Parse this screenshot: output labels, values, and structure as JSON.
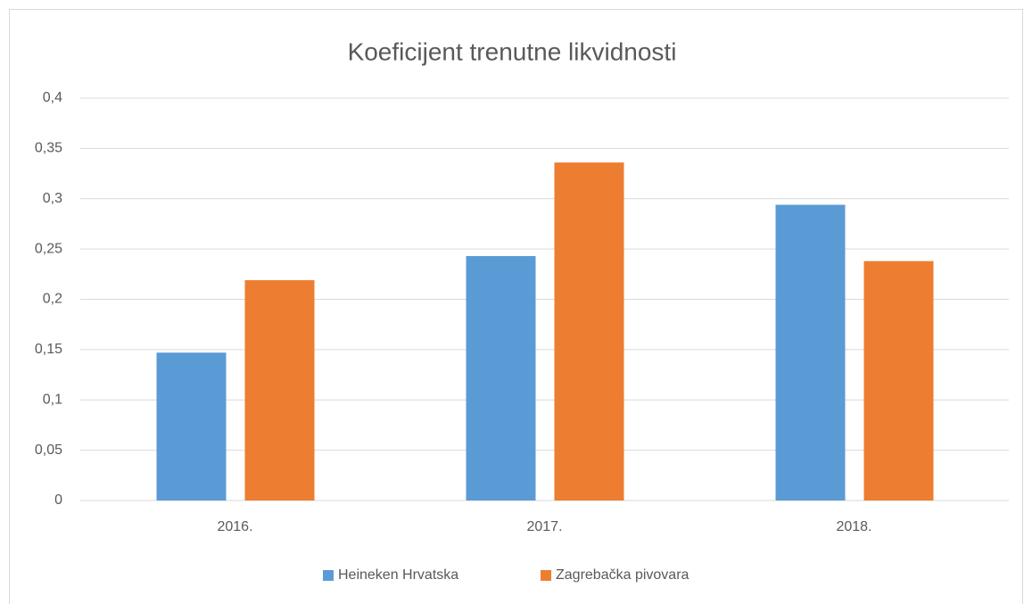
{
  "chart_data": {
    "type": "bar",
    "title": "Koeficijent trenutne likvidnosti",
    "categories": [
      "2016.",
      "2017.",
      "2018."
    ],
    "series": [
      {
        "name": "Heineken Hrvatska",
        "color": "#5b9bd5",
        "values": [
          0.147,
          0.243,
          0.294
        ]
      },
      {
        "name": "Zagrebačka pivovara",
        "color": "#ed7d31",
        "values": [
          0.219,
          0.336,
          0.238
        ]
      }
    ],
    "ylim": [
      0,
      0.4
    ],
    "yticks": [
      0,
      {
        "value": 0.05,
        "label": "0,05"
      },
      {
        "value": 0.1,
        "label": "0,1"
      },
      {
        "value": 0.15,
        "label": "0,15"
      },
      {
        "value": 0.2,
        "label": "0,2"
      },
      {
        "value": 0.25,
        "label": "0,25"
      },
      {
        "value": 0.3,
        "label": "0,3"
      },
      {
        "value": 0.35,
        "label": "0,35"
      },
      {
        "value": 0.4,
        "label": "0,4"
      }
    ],
    "grid": true,
    "legend": "bottom"
  }
}
